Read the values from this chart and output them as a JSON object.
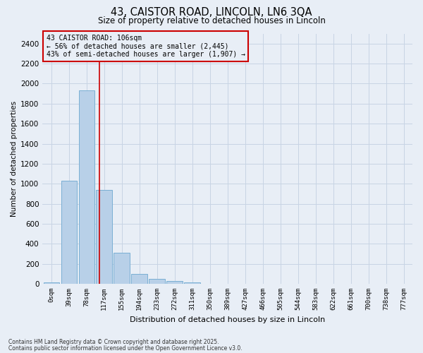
{
  "title_line1": "43, CAISTOR ROAD, LINCOLN, LN6 3QA",
  "title_line2": "Size of property relative to detached houses in Lincoln",
  "xlabel": "Distribution of detached houses by size in Lincoln",
  "ylabel": "Number of detached properties",
  "bar_labels": [
    "0sqm",
    "39sqm",
    "78sqm",
    "117sqm",
    "155sqm",
    "194sqm",
    "233sqm",
    "272sqm",
    "311sqm",
    "350sqm",
    "389sqm",
    "427sqm",
    "466sqm",
    "505sqm",
    "544sqm",
    "583sqm",
    "622sqm",
    "661sqm",
    "700sqm",
    "738sqm",
    "777sqm"
  ],
  "bar_values": [
    15,
    1030,
    1930,
    935,
    310,
    100,
    48,
    28,
    18,
    0,
    0,
    0,
    0,
    0,
    0,
    0,
    0,
    0,
    0,
    0,
    0
  ],
  "bar_color": "#b8d0e8",
  "bar_edge_color": "#7aafd4",
  "grid_color": "#c8d4e4",
  "background_color": "#e8eef6",
  "vline_x": 2.72,
  "vline_color": "#cc0000",
  "annotation_title": "43 CAISTOR ROAD: 106sqm",
  "annotation_line2": "← 56% of detached houses are smaller (2,445)",
  "annotation_line3": "43% of semi-detached houses are larger (1,907) →",
  "annotation_box_color": "#cc0000",
  "ylim": [
    0,
    2500
  ],
  "yticks": [
    0,
    200,
    400,
    600,
    800,
    1000,
    1200,
    1400,
    1600,
    1800,
    2000,
    2200,
    2400
  ],
  "footnote1": "Contains HM Land Registry data © Crown copyright and database right 2025.",
  "footnote2": "Contains public sector information licensed under the Open Government Licence v3.0."
}
